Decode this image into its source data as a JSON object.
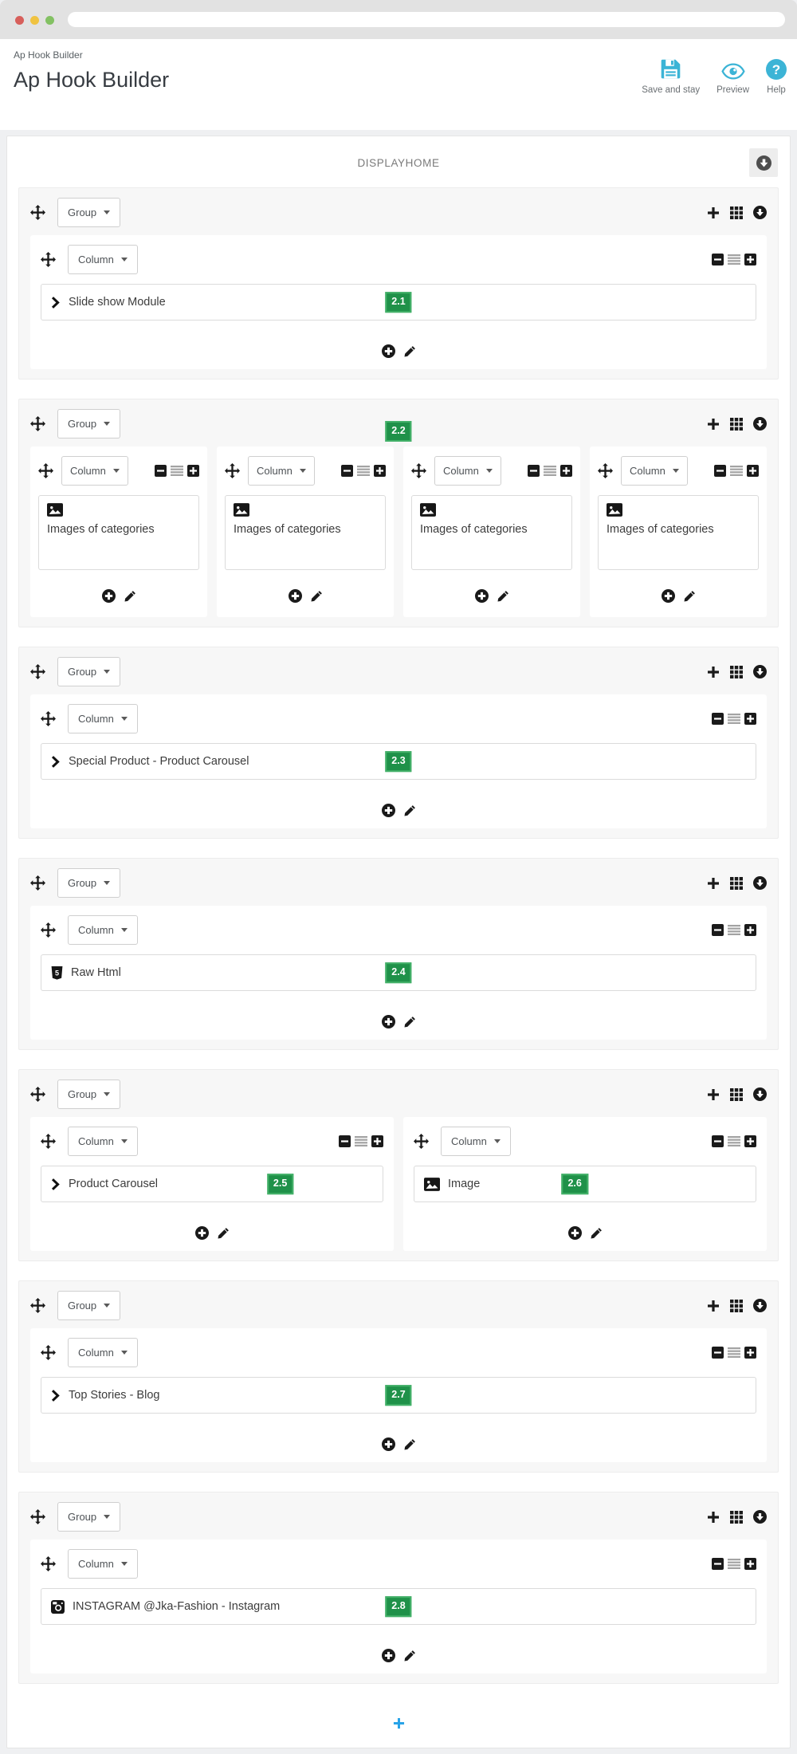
{
  "browser": {
    "traffic_lights": [
      "close",
      "minimize",
      "zoom"
    ],
    "address_value": ""
  },
  "header": {
    "breadcrumb": "Ap Hook Builder",
    "title": "Ap Hook Builder",
    "actions": [
      {
        "id": "save",
        "label": "Save and stay",
        "icon": "save-icon"
      },
      {
        "id": "preview",
        "label": "Preview",
        "icon": "eye-icon"
      },
      {
        "id": "help",
        "label": "Help",
        "icon": "help-icon"
      }
    ]
  },
  "builder": {
    "hook_name": "DISPLAYHOME",
    "collapse_all_icon": "collapse-all-icon",
    "group_label": "Group",
    "column_label": "Column",
    "group_action_icons": [
      "add-column-icon",
      "grid-icon",
      "collapse-group-icon"
    ],
    "column_control_icons": [
      "minus-square-icon",
      "justify-icon",
      "plus-square-icon"
    ],
    "column_footer_icons": [
      "add-module-icon",
      "edit-module-icon"
    ],
    "move_icon": "move-icon",
    "add_group_icon": "add-group-icon",
    "groups": [
      {
        "badge": null,
        "columns": [
          {
            "modules": [
              {
                "icon": "chevron-right-icon",
                "label": "Slide show Module",
                "badge": "2.1",
                "badge_left_pct": 50
              }
            ]
          }
        ]
      },
      {
        "badge": "2.2",
        "columns": [
          {
            "modules": [
              {
                "icon": "image-icon",
                "label": "Images of categories",
                "badge": null,
                "stacked": true
              }
            ]
          },
          {
            "modules": [
              {
                "icon": "image-icon",
                "label": "Images of categories",
                "badge": null,
                "stacked": true
              }
            ]
          },
          {
            "modules": [
              {
                "icon": "image-icon",
                "label": "Images of categories",
                "badge": null,
                "stacked": true
              }
            ]
          },
          {
            "modules": [
              {
                "icon": "image-icon",
                "label": "Images of categories",
                "badge": null,
                "stacked": true
              }
            ]
          }
        ]
      },
      {
        "badge": null,
        "columns": [
          {
            "modules": [
              {
                "icon": "chevron-right-icon",
                "label": "Special Product - Product Carousel",
                "badge": "2.3",
                "badge_left_pct": 50
              }
            ]
          }
        ]
      },
      {
        "badge": null,
        "columns": [
          {
            "modules": [
              {
                "icon": "html5-icon",
                "label": "Raw Html",
                "badge": "2.4",
                "badge_left_pct": 50
              }
            ]
          }
        ]
      },
      {
        "badge": null,
        "columns": [
          {
            "modules": [
              {
                "icon": "chevron-right-icon",
                "label": "Product Carousel",
                "badge": "2.5",
                "badge_left_pct": 70
              }
            ]
          },
          {
            "modules": [
              {
                "icon": "image-icon",
                "label": "Image",
                "badge": "2.6",
                "badge_left_pct": 47
              }
            ]
          }
        ]
      },
      {
        "badge": null,
        "columns": [
          {
            "modules": [
              {
                "icon": "chevron-right-icon",
                "label": "Top Stories - Blog",
                "badge": "2.7",
                "badge_left_pct": 50
              }
            ]
          }
        ]
      },
      {
        "badge": null,
        "columns": [
          {
            "modules": [
              {
                "icon": "instagram-icon",
                "label": "INSTAGRAM @Jka-Fashion - Instagram",
                "badge": "2.8",
                "badge_left_pct": 50
              }
            ]
          }
        ]
      }
    ]
  },
  "colors": {
    "accent_teal": "#3cb4d6",
    "badge_green": "#1f9149",
    "badge_border": "#43b169",
    "add_blue": "#28a3e8",
    "icon_black": "#1a1a1a"
  }
}
